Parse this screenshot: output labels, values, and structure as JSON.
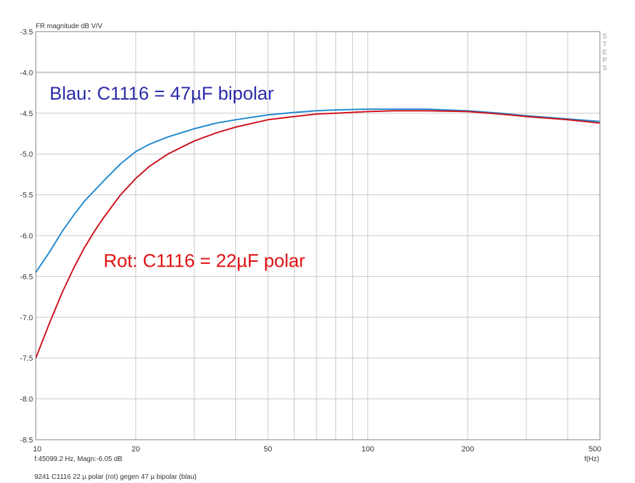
{
  "chart_data": {
    "type": "line",
    "title": "",
    "ylabel": "FR magnitude dB V/V",
    "xlabel": "f(Hz)",
    "x_scale": "log",
    "xlim": [
      10,
      500
    ],
    "ylim": [
      -8.5,
      -3.5
    ],
    "grid": true,
    "x_ticks": [
      10,
      20,
      50,
      100,
      200,
      500
    ],
    "x_tick_labels": [
      "10",
      "20",
      "50",
      "100",
      "200",
      "500"
    ],
    "y_ticks": [
      -3.5,
      -4.0,
      -4.5,
      -5.0,
      -5.5,
      -6.0,
      -6.5,
      -7.0,
      -7.5,
      -8.0,
      -8.5
    ],
    "y_tick_labels": [
      "-3.5",
      "-4.0",
      "-4.5",
      "-5.0",
      "-5.5",
      "-6.0",
      "-6.5",
      "-7.0",
      "-7.5",
      "-8.0",
      "-8.5"
    ],
    "reference_line_y": -4.0,
    "side_label": "STEPS",
    "cursor_readout": "f:45099.2 Hz, Magn:-6.05 dB",
    "footer": "9241 C1116 22 µ polar (rot) gegen 47 µ bipolar (blau)",
    "annotations": [
      {
        "text": "Blau: C1116 = 47µF bipolar",
        "color": "#2b2ba8",
        "x": 11,
        "y": -4.25
      },
      {
        "text": "Rot: C1116 = 22µF polar",
        "color": "#e01010",
        "x": 16,
        "y": -6.3
      }
    ],
    "series": [
      {
        "color": "#1e88d0",
        "x": [
          10,
          11,
          12,
          13,
          14,
          15,
          16,
          18,
          20,
          22,
          25,
          30,
          35,
          40,
          50,
          60,
          70,
          80,
          100,
          120,
          150,
          200,
          250,
          300,
          400,
          500
        ],
        "y": [
          -6.45,
          -6.2,
          -5.95,
          -5.75,
          -5.58,
          -5.45,
          -5.33,
          -5.12,
          -4.97,
          -4.88,
          -4.79,
          -4.69,
          -4.62,
          -4.58,
          -4.52,
          -4.49,
          -4.47,
          -4.46,
          -4.45,
          -4.45,
          -4.45,
          -4.47,
          -4.5,
          -4.53,
          -4.57,
          -4.6
        ]
      },
      {
        "color": "#d0101a",
        "x": [
          10,
          11,
          12,
          13,
          14,
          15,
          16,
          18,
          20,
          22,
          25,
          30,
          35,
          40,
          50,
          60,
          70,
          80,
          100,
          120,
          150,
          200,
          250,
          300,
          400,
          500
        ],
        "y": [
          -7.5,
          -7.07,
          -6.7,
          -6.4,
          -6.15,
          -5.95,
          -5.78,
          -5.5,
          -5.3,
          -5.15,
          -5.0,
          -4.84,
          -4.74,
          -4.67,
          -4.58,
          -4.54,
          -4.51,
          -4.5,
          -4.48,
          -4.47,
          -4.47,
          -4.48,
          -4.51,
          -4.54,
          -4.58,
          -4.62
        ]
      }
    ]
  }
}
